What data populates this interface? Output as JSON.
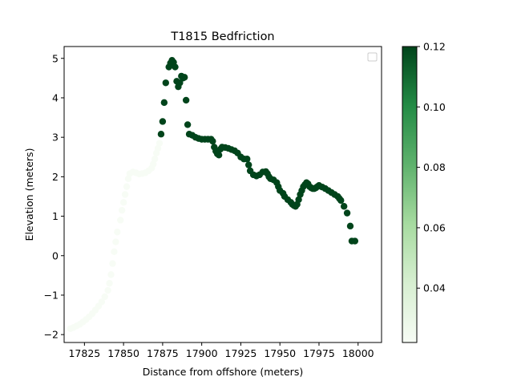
{
  "chart_data": {
    "type": "scatter",
    "title": "T1815 Bedfriction",
    "xlabel": "Distance from offshore (meters)",
    "ylabel": "Elevation (meters)",
    "xlim": [
      17812,
      18015
    ],
    "ylim": [
      -2.2,
      5.3
    ],
    "xticks": [
      17825,
      17850,
      17875,
      17900,
      17925,
      17950,
      17975,
      18000
    ],
    "yticks": [
      -2,
      -1,
      0,
      1,
      2,
      3,
      4,
      5
    ],
    "legend": {
      "placement": "top-right",
      "entries": []
    },
    "colorbar": {
      "colormap": "Greens",
      "range": [
        0.022,
        0.12
      ],
      "ticks": [
        0.04,
        0.06,
        0.08,
        0.1,
        0.12
      ],
      "tick_labels": [
        "0.04",
        "0.06",
        "0.08",
        "0.10",
        "0.12"
      ],
      "colors": {
        "low": "#f7fcf5",
        "high": "#00441b"
      }
    },
    "grid": false,
    "points_low": [
      [
        17816,
        -1.85
      ],
      [
        17818,
        -1.82
      ],
      [
        17820,
        -1.78
      ],
      [
        17822,
        -1.74
      ],
      [
        17824,
        -1.68
      ],
      [
        17826,
        -1.62
      ],
      [
        17828,
        -1.55
      ],
      [
        17830,
        -1.47
      ],
      [
        17832,
        -1.38
      ],
      [
        17834,
        -1.28
      ],
      [
        17836,
        -1.17
      ],
      [
        17838,
        -1.04
      ],
      [
        17840,
        -0.88
      ],
      [
        17841,
        -0.7
      ],
      [
        17842,
        -0.48
      ],
      [
        17843,
        -0.2
      ],
      [
        17844,
        0.1
      ],
      [
        17845,
        0.35
      ],
      [
        17846,
        0.6
      ],
      [
        17848,
        0.9
      ],
      [
        17849,
        1.15
      ],
      [
        17850,
        1.35
      ],
      [
        17851,
        1.55
      ],
      [
        17852,
        1.75
      ],
      [
        17853,
        1.95
      ],
      [
        17854,
        2.08
      ],
      [
        17856,
        2.12
      ],
      [
        17858,
        2.1
      ],
      [
        17860,
        2.07
      ],
      [
        17862,
        2.08
      ],
      [
        17864,
        2.1
      ],
      [
        17866,
        2.15
      ],
      [
        17868,
        2.22
      ],
      [
        17869,
        2.32
      ],
      [
        17870,
        2.45
      ],
      [
        17871,
        2.6
      ],
      [
        17872,
        2.72
      ],
      [
        17873,
        2.85
      ]
    ],
    "points_high": [
      [
        17874,
        3.08
      ],
      [
        17875,
        3.4
      ],
      [
        17876,
        3.88
      ],
      [
        17877,
        4.38
      ],
      [
        17879,
        4.78
      ],
      [
        17880,
        4.88
      ],
      [
        17881,
        4.95
      ],
      [
        17882,
        4.9
      ],
      [
        17883,
        4.78
      ],
      [
        17884,
        4.42
      ],
      [
        17885,
        4.28
      ],
      [
        17886,
        4.38
      ],
      [
        17887,
        4.55
      ],
      [
        17888,
        4.5
      ],
      [
        17889,
        4.52
      ],
      [
        17890,
        3.94
      ],
      [
        17891,
        3.32
      ],
      [
        17892,
        3.08
      ],
      [
        17894,
        3.05
      ],
      [
        17896,
        3.0
      ],
      [
        17898,
        2.97
      ],
      [
        17900,
        2.95
      ],
      [
        17902,
        2.95
      ],
      [
        17904,
        2.95
      ],
      [
        17906,
        2.95
      ],
      [
        17907,
        2.9
      ],
      [
        17908,
        2.75
      ],
      [
        17909,
        2.65
      ],
      [
        17910,
        2.58
      ],
      [
        17911,
        2.55
      ],
      [
        17912,
        2.7
      ],
      [
        17913,
        2.75
      ],
      [
        17915,
        2.74
      ],
      [
        17917,
        2.72
      ],
      [
        17919,
        2.69
      ],
      [
        17921,
        2.66
      ],
      [
        17923,
        2.6
      ],
      [
        17925,
        2.5
      ],
      [
        17927,
        2.45
      ],
      [
        17929,
        2.45
      ],
      [
        17930,
        2.3
      ],
      [
        17931,
        2.15
      ],
      [
        17933,
        2.05
      ],
      [
        17935,
        2.02
      ],
      [
        17937,
        2.05
      ],
      [
        17939,
        2.12
      ],
      [
        17941,
        2.13
      ],
      [
        17942,
        2.08
      ],
      [
        17943,
        2.0
      ],
      [
        17944,
        1.95
      ],
      [
        17946,
        1.92
      ],
      [
        17948,
        1.85
      ],
      [
        17949,
        1.75
      ],
      [
        17950,
        1.65
      ],
      [
        17952,
        1.58
      ],
      [
        17953,
        1.5
      ],
      [
        17955,
        1.42
      ],
      [
        17957,
        1.35
      ],
      [
        17958,
        1.3
      ],
      [
        17959,
        1.27
      ],
      [
        17960,
        1.25
      ],
      [
        17961,
        1.3
      ],
      [
        17962,
        1.42
      ],
      [
        17963,
        1.55
      ],
      [
        17964,
        1.65
      ],
      [
        17965,
        1.75
      ],
      [
        17966,
        1.8
      ],
      [
        17967,
        1.85
      ],
      [
        17968,
        1.82
      ],
      [
        17969,
        1.75
      ],
      [
        17970,
        1.72
      ],
      [
        17971,
        1.7
      ],
      [
        17972,
        1.7
      ],
      [
        17973,
        1.72
      ],
      [
        17974,
        1.75
      ],
      [
        17975,
        1.78
      ],
      [
        17977,
        1.74
      ],
      [
        17979,
        1.7
      ],
      [
        17981,
        1.65
      ],
      [
        17983,
        1.6
      ],
      [
        17985,
        1.55
      ],
      [
        17987,
        1.5
      ],
      [
        17988,
        1.45
      ],
      [
        17989,
        1.4
      ],
      [
        17991,
        1.25
      ],
      [
        17993,
        1.08
      ],
      [
        17995,
        0.75
      ],
      [
        17996,
        0.37
      ],
      [
        17998,
        0.37
      ]
    ]
  }
}
